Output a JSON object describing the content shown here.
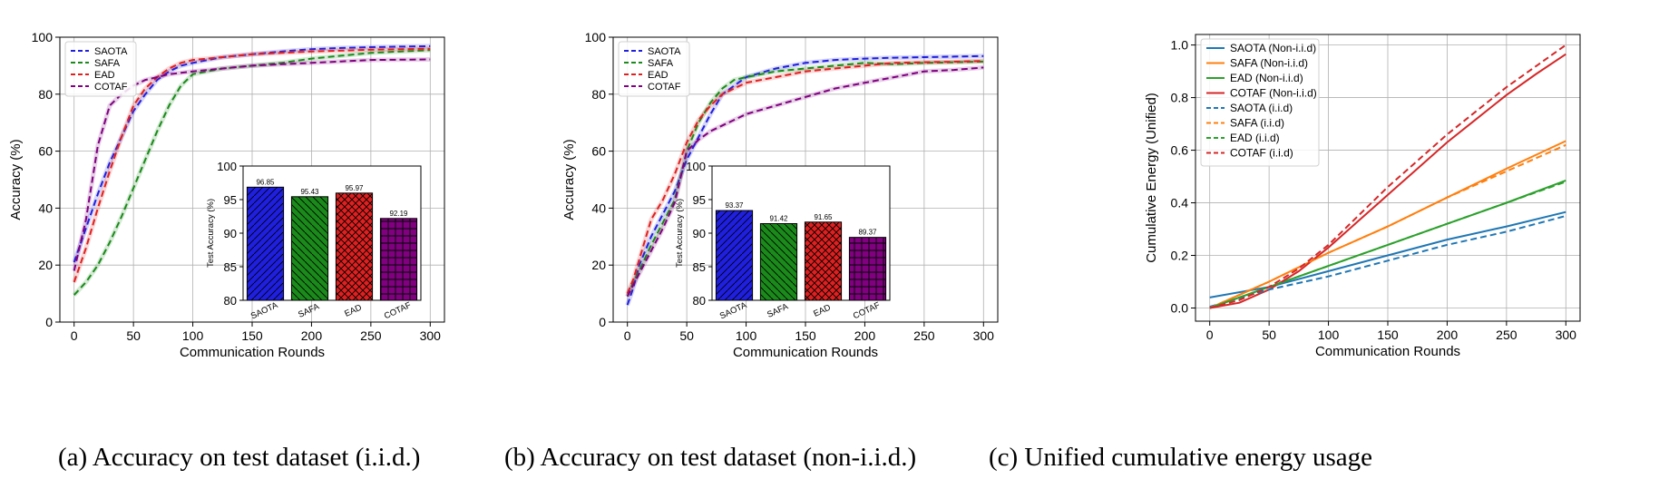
{
  "captions": {
    "a": "(a) Accuracy on test dataset (i.i.d.)",
    "b": "(b) Accuracy on test dataset (non-i.i.d.)",
    "c": "(c) Unified cumulative energy usage"
  },
  "colors": {
    "SAOTA": "#1f1fe0",
    "SAFA": "#1a8a1a",
    "EAD": "#e02020",
    "COTAF": "#800080",
    "c_SAOTA": "#1f77b4",
    "c_SAFA": "#ff7f0e",
    "c_EAD": "#2ca02c",
    "c_COTAF": "#d62728"
  },
  "chart_data": [
    {
      "type": "line",
      "xlabel": "Communication Rounds",
      "ylabel": "Accuracy (%)",
      "xlim": [
        -12,
        312
      ],
      "ylim": [
        0,
        100
      ],
      "xticks": [
        0,
        50,
        100,
        150,
        200,
        250,
        300
      ],
      "yticks": [
        0,
        20,
        40,
        60,
        80,
        100
      ],
      "grid": true,
      "legend": "top-left",
      "series": [
        {
          "name": "SAOTA",
          "style": "dashed",
          "x": [
            0,
            10,
            20,
            30,
            40,
            50,
            60,
            70,
            80,
            90,
            100,
            125,
            150,
            175,
            200,
            225,
            250,
            275,
            300
          ],
          "y": [
            21,
            33,
            45,
            56,
            65,
            74,
            80,
            85,
            88,
            90,
            91,
            93,
            94,
            95,
            95.8,
            96.2,
            96.5,
            96.7,
            96.85
          ]
        },
        {
          "name": "SAFA",
          "style": "dashed",
          "x": [
            0,
            10,
            20,
            30,
            40,
            50,
            60,
            70,
            80,
            90,
            100,
            125,
            150,
            175,
            200,
            225,
            250,
            275,
            300
          ],
          "y": [
            9.5,
            14,
            20,
            28,
            37,
            47,
            57,
            67,
            76,
            83,
            87,
            89,
            90,
            91,
            92.5,
            93.5,
            94.5,
            95,
            95.43
          ]
        },
        {
          "name": "EAD",
          "style": "dashed",
          "x": [
            0,
            10,
            20,
            30,
            40,
            50,
            60,
            70,
            80,
            90,
            100,
            125,
            150,
            175,
            200,
            225,
            250,
            275,
            300
          ],
          "y": [
            14,
            26,
            40,
            53,
            65,
            76,
            82,
            86,
            89,
            91,
            92,
            93,
            94,
            94.5,
            95,
            95.3,
            95.6,
            95.8,
            95.97
          ]
        },
        {
          "name": "COTAF",
          "style": "dashed",
          "x": [
            0,
            10,
            20,
            30,
            40,
            50,
            60,
            70,
            80,
            90,
            100,
            125,
            150,
            175,
            200,
            225,
            250,
            275,
            300
          ],
          "y": [
            18,
            36,
            62,
            76,
            80,
            83,
            85,
            86,
            87,
            87.5,
            88,
            89,
            90,
            90.5,
            91,
            91.5,
            92,
            92.1,
            92.19
          ]
        }
      ],
      "inset": {
        "type": "bar",
        "ylabel": "Test Accuracy (%)",
        "ylim": [
          80,
          100
        ],
        "yticks": [
          80,
          85,
          90,
          95,
          100
        ],
        "categories": [
          "SAOTA",
          "SAFA",
          "EAD",
          "COTAF"
        ],
        "values": [
          96.85,
          95.43,
          95.97,
          92.19
        ],
        "labels": [
          "96.85",
          "95.43",
          "95.97",
          "92.19"
        ]
      }
    },
    {
      "type": "line",
      "xlabel": "Communication Rounds",
      "ylabel": "Accuracy (%)",
      "xlim": [
        -12,
        312
      ],
      "ylim": [
        0,
        100
      ],
      "xticks": [
        0,
        50,
        100,
        150,
        200,
        250,
        300
      ],
      "yticks": [
        0,
        20,
        40,
        60,
        80,
        100
      ],
      "grid": true,
      "legend": "top-left",
      "series": [
        {
          "name": "SAOTA",
          "style": "dashed",
          "x": [
            0,
            5,
            10,
            20,
            30,
            40,
            50,
            60,
            70,
            80,
            90,
            100,
            125,
            150,
            175,
            200,
            225,
            250,
            275,
            300
          ],
          "y": [
            6,
            12,
            20,
            30,
            38,
            46,
            57,
            65,
            73,
            80,
            83,
            86,
            89,
            91,
            92,
            92.5,
            92.8,
            93,
            93.2,
            93.37
          ]
        },
        {
          "name": "SAFA",
          "style": "dashed",
          "x": [
            0,
            5,
            10,
            20,
            30,
            40,
            50,
            60,
            70,
            80,
            90,
            100,
            125,
            150,
            175,
            200,
            225,
            250,
            275,
            300
          ],
          "y": [
            9,
            14,
            18,
            27,
            35,
            43,
            60,
            70,
            77,
            82,
            85,
            86,
            88,
            89,
            90,
            91,
            90.5,
            91,
            91.2,
            91.42
          ]
        },
        {
          "name": "EAD",
          "style": "dashed",
          "x": [
            0,
            5,
            10,
            20,
            30,
            40,
            50,
            60,
            70,
            80,
            90,
            100,
            125,
            150,
            175,
            200,
            225,
            250,
            275,
            300
          ],
          "y": [
            10,
            15,
            22,
            36,
            43,
            52,
            63,
            71,
            76,
            80,
            82,
            84,
            86,
            88,
            89,
            90,
            91,
            91.2,
            91.4,
            91.65
          ]
        },
        {
          "name": "COTAF",
          "style": "dashed",
          "x": [
            0,
            5,
            10,
            20,
            30,
            40,
            50,
            60,
            70,
            80,
            90,
            100,
            125,
            150,
            175,
            200,
            225,
            250,
            275,
            300
          ],
          "y": [
            9,
            13,
            17,
            25,
            33,
            42,
            60,
            64,
            67,
            69,
            71,
            73,
            76,
            79,
            82,
            84,
            86,
            88,
            88.5,
            89.37
          ]
        }
      ],
      "inset": {
        "type": "bar",
        "ylabel": "Test Accuracy (%)",
        "ylim": [
          80,
          100
        ],
        "yticks": [
          80,
          85,
          90,
          95,
          100
        ],
        "categories": [
          "SAOTA",
          "SAFA",
          "EAD",
          "COTAF"
        ],
        "values": [
          93.37,
          91.42,
          91.65,
          89.37
        ],
        "labels": [
          "93.37",
          "91.42",
          "91.65",
          "89.37"
        ]
      }
    },
    {
      "type": "line",
      "xlabel": "Communication Rounds",
      "ylabel": "Cumulative Energy (Unified)",
      "xlim": [
        -12,
        312
      ],
      "ylim": [
        -0.05,
        1.04
      ],
      "xticks": [
        0,
        50,
        100,
        150,
        200,
        250,
        300
      ],
      "yticks": [
        0.0,
        0.2,
        0.4,
        0.6,
        0.8,
        1.0
      ],
      "ytick_labels": [
        "0.0",
        "0.2",
        "0.4",
        "0.6",
        "0.8",
        "1.0"
      ],
      "grid": true,
      "legend": "top-left",
      "series": [
        {
          "name": "SAOTA (Non-i.i.d)",
          "style": "solid",
          "x": [
            0,
            50,
            100,
            150,
            200,
            250,
            300
          ],
          "y": [
            0.04,
            0.08,
            0.14,
            0.2,
            0.26,
            0.31,
            0.365
          ]
        },
        {
          "name": "SAFA (Non-i.i.d)",
          "style": "solid",
          "x": [
            0,
            50,
            100,
            150,
            200,
            250,
            300
          ],
          "y": [
            0.0,
            0.1,
            0.21,
            0.31,
            0.42,
            0.53,
            0.635
          ]
        },
        {
          "name": "EAD (Non-i.i.d)",
          "style": "solid",
          "x": [
            0,
            50,
            100,
            150,
            200,
            250,
            300
          ],
          "y": [
            0.0,
            0.08,
            0.16,
            0.24,
            0.32,
            0.4,
            0.485
          ]
        },
        {
          "name": "COTAF (Non-i.i.d)",
          "style": "solid",
          "x": [
            0,
            25,
            50,
            75,
            100,
            125,
            150,
            175,
            200,
            225,
            250,
            275,
            300
          ],
          "y": [
            0.0,
            0.02,
            0.07,
            0.14,
            0.23,
            0.33,
            0.43,
            0.53,
            0.63,
            0.72,
            0.81,
            0.89,
            0.965
          ]
        },
        {
          "name": "SAOTA (i.i.d)",
          "style": "dashed",
          "x": [
            0,
            50,
            100,
            150,
            200,
            250,
            300
          ],
          "y": [
            0.005,
            0.07,
            0.12,
            0.18,
            0.24,
            0.29,
            0.35
          ]
        },
        {
          "name": "SAFA (i.i.d)",
          "style": "dashed",
          "x": [
            0,
            50,
            100,
            150,
            200,
            250,
            300
          ],
          "y": [
            0.0,
            0.1,
            0.21,
            0.31,
            0.42,
            0.52,
            0.62
          ]
        },
        {
          "name": "EAD (i.i.d)",
          "style": "dashed",
          "x": [
            0,
            50,
            100,
            150,
            200,
            250,
            300
          ],
          "y": [
            0.0,
            0.08,
            0.16,
            0.24,
            0.32,
            0.4,
            0.48
          ]
        },
        {
          "name": "COTAF (i.i.d)",
          "style": "dashed",
          "x": [
            0,
            25,
            50,
            75,
            100,
            125,
            150,
            175,
            200,
            225,
            250,
            275,
            300
          ],
          "y": [
            0.0,
            0.03,
            0.08,
            0.15,
            0.24,
            0.35,
            0.46,
            0.56,
            0.66,
            0.75,
            0.84,
            0.92,
            1.0
          ]
        }
      ]
    }
  ]
}
